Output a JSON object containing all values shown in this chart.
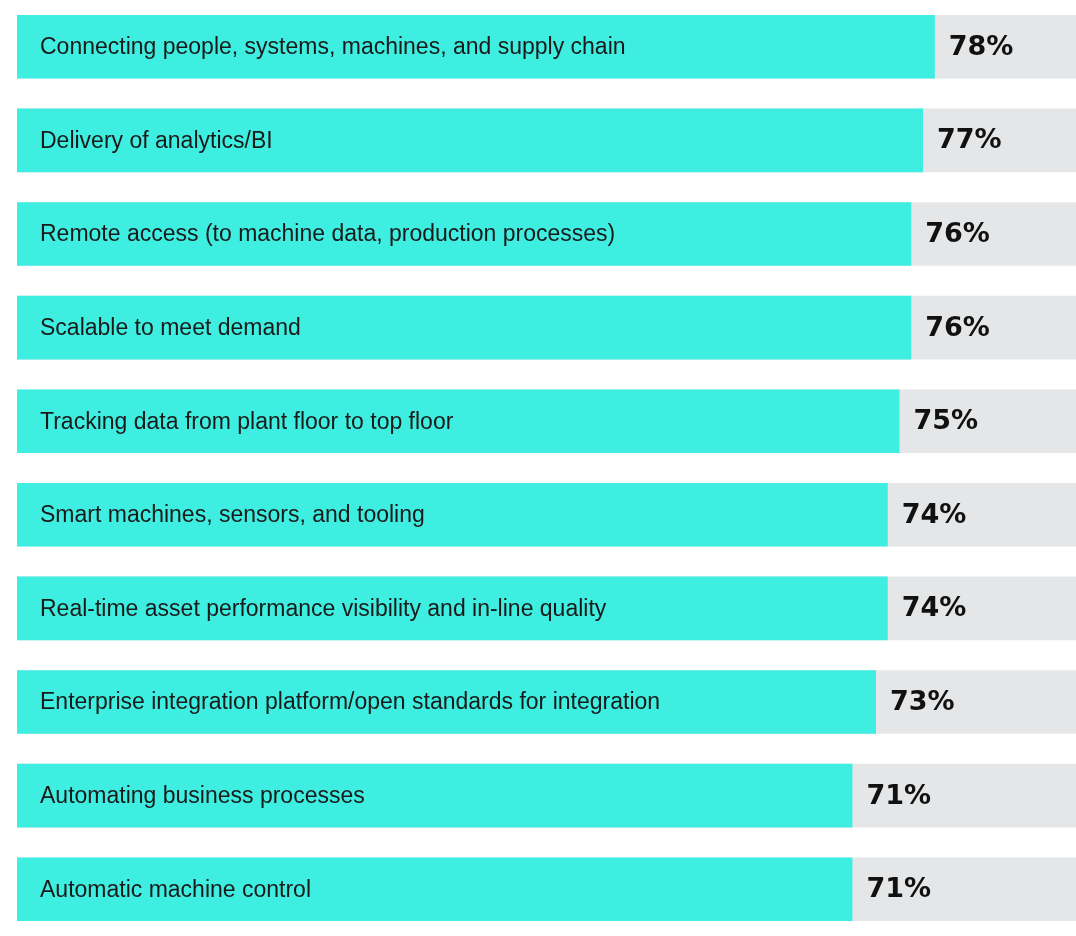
{
  "chart_data": {
    "type": "bar",
    "orientation": "horizontal",
    "categories": [
      "Connecting people, systems, machines, and supply chain",
      "Delivery of analytics/BI",
      "Remote access (to machine data, production processes)",
      "Scalable to meet demand",
      "Tracking data from plant floor to top floor",
      "Smart machines, sensors, and tooling",
      "Real-time asset performance visibility and in-line quality",
      "Enterprise integration platform/open standards for integration",
      "Automating business processes",
      "Automatic machine control"
    ],
    "values": [
      78,
      77,
      76,
      76,
      75,
      74,
      74,
      73,
      71,
      71
    ],
    "color": "#3eeee0",
    "value_labels": [
      "78%",
      "77%",
      "76%",
      "76%",
      "75%",
      "74%",
      "74%",
      "73%",
      "71%",
      "71%"
    ],
    "legend": false
  }
}
